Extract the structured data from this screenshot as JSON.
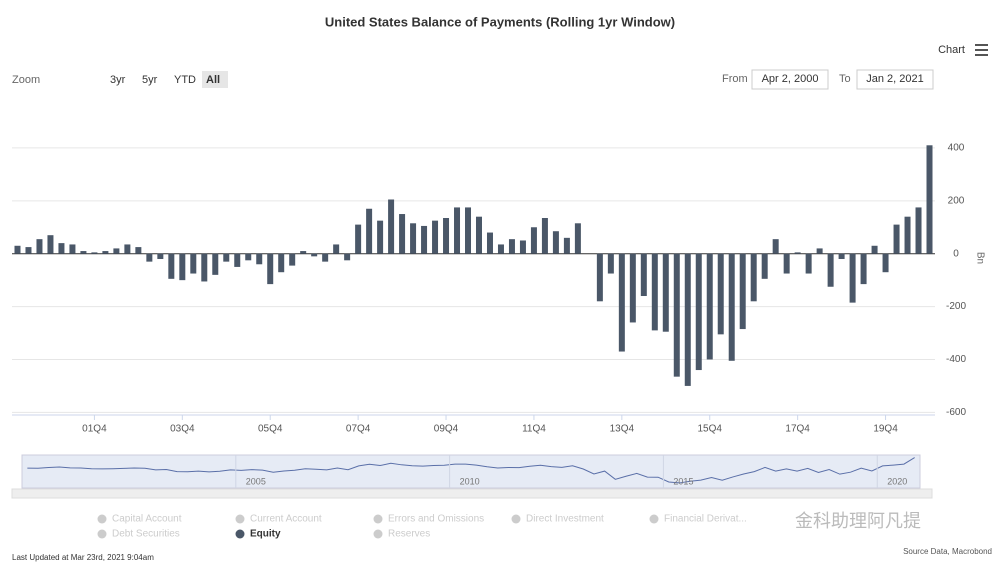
{
  "chart_data": {
    "type": "bar",
    "title": "United States Balance of Payments (Rolling 1yr Window)",
    "menu_label": "Chart",
    "zoom": {
      "label": "Zoom",
      "buttons": [
        "3yr",
        "5yr",
        "YTD",
        "All"
      ],
      "active": "All"
    },
    "range": {
      "from_label": "From",
      "from": "Apr 2, 2000",
      "to_label": "To",
      "to": "Jan 2, 2021"
    },
    "y_axis_label": "Bn",
    "categories": [
      null,
      null,
      null,
      null,
      null,
      null,
      null,
      "01Q4",
      null,
      null,
      null,
      null,
      null,
      null,
      null,
      "03Q4",
      null,
      null,
      null,
      null,
      null,
      null,
      null,
      "05Q4",
      null,
      null,
      null,
      null,
      null,
      null,
      null,
      "07Q4",
      null,
      null,
      null,
      null,
      null,
      null,
      null,
      "09Q4",
      null,
      null,
      null,
      null,
      null,
      null,
      null,
      "11Q4",
      null,
      null,
      null,
      null,
      null,
      null,
      null,
      "13Q4",
      null,
      null,
      null,
      null,
      null,
      null,
      null,
      "15Q4",
      null,
      null,
      null,
      null,
      null,
      null,
      null,
      "17Q4",
      null,
      null,
      null,
      null,
      null,
      null,
      null,
      "19Q4",
      null,
      null,
      null,
      null
    ],
    "series": [
      {
        "name": "Equity",
        "color": "#4a5768",
        "values": [
          30,
          25,
          55,
          70,
          40,
          35,
          10,
          5,
          10,
          20,
          35,
          25,
          -30,
          -20,
          -95,
          -100,
          -75,
          -105,
          -80,
          -30,
          -50,
          -25,
          -40,
          -115,
          -70,
          -45,
          10,
          -10,
          -30,
          35,
          -25,
          110,
          170,
          125,
          205,
          150,
          115,
          105,
          125,
          135,
          175,
          175,
          140,
          80,
          35,
          55,
          50,
          100,
          135,
          85,
          60,
          115,
          0,
          -180,
          -75,
          -370,
          -260,
          -160,
          -290,
          -295,
          -465,
          -500,
          -440,
          -400,
          -305,
          -405,
          -285,
          -180,
          -95,
          55,
          -75,
          5,
          -75,
          20,
          -125,
          -20,
          -185,
          -115,
          30,
          -70,
          110,
          140,
          175,
          410
        ]
      }
    ],
    "legend_inactive": [
      "Capital Account",
      "Current Account",
      "Errors and Omissions",
      "Direct Investment",
      "Financial Derivat...",
      "Debt Securities",
      "Reserves"
    ],
    "ylim": [
      -610,
      430
    ],
    "yticks": [
      -600,
      -400,
      -200,
      0,
      200,
      400
    ],
    "grid": true,
    "navigator_ticks": [
      2005,
      2010,
      2015,
      2020
    ],
    "footer_left": "Last Updated at Mar 23rd, 2021 9:04am",
    "footer_right": "Source Data, Macrobond",
    "watermark": "金科助理阿凡提"
  }
}
